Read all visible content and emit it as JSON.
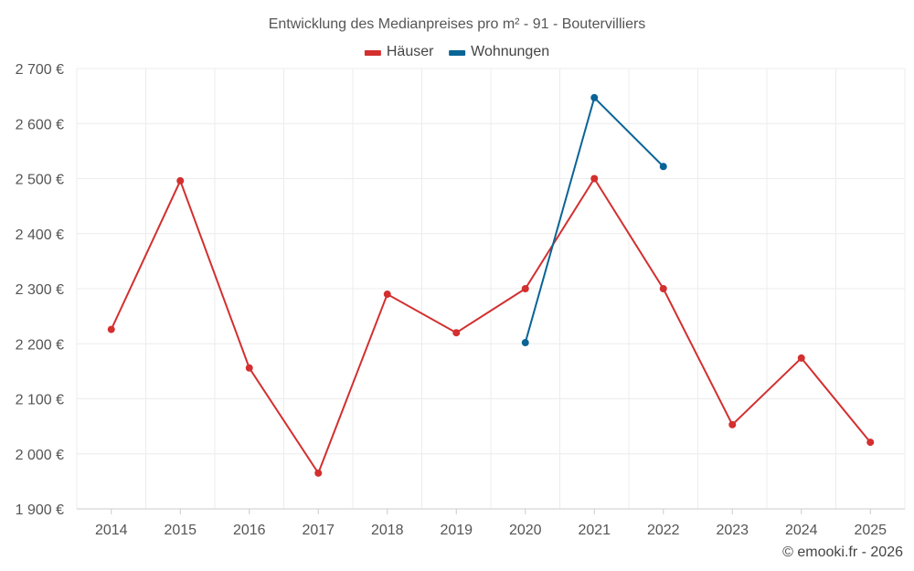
{
  "chart_data": {
    "type": "line",
    "title": "Entwicklung des Medianpreises pro m² - 91 - Boutervilliers",
    "categories": [
      "2014",
      "2015",
      "2016",
      "2017",
      "2018",
      "2019",
      "2020",
      "2021",
      "2022",
      "2023",
      "2024",
      "2025"
    ],
    "series": [
      {
        "name": "Häuser",
        "color": "#d32f2f",
        "values": [
          2226,
          2496,
          2156,
          1965,
          2290,
          2220,
          2300,
          2500,
          2300,
          2053,
          2174,
          2021
        ]
      },
      {
        "name": "Wohnungen",
        "color": "#0a6496",
        "values": [
          null,
          null,
          null,
          null,
          null,
          null,
          2202,
          2647,
          2522,
          null,
          null,
          null
        ]
      }
    ],
    "ylim": [
      1900,
      2700
    ],
    "yticks": [
      1900,
      2000,
      2100,
      2200,
      2300,
      2400,
      2500,
      2600,
      2700
    ],
    "ytick_labels": [
      "1 900 €",
      "2 000 €",
      "2 100 €",
      "2 200 €",
      "2 300 €",
      "2 400 €",
      "2 500 €",
      "2 600 €",
      "2 700 €"
    ],
    "xlabel": "",
    "ylabel": "",
    "grid": true,
    "legend_position": "top-center"
  },
  "credit": "© emooki.fr - 2026"
}
